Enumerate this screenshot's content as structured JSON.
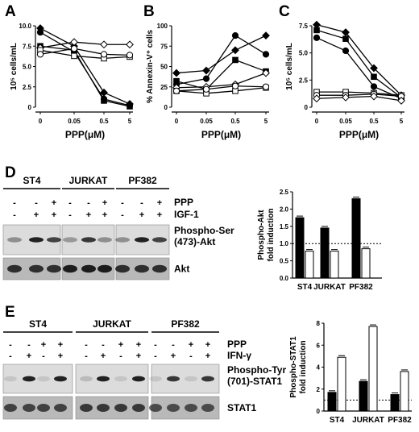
{
  "panels": {
    "A": "A",
    "B": "B",
    "C": "C",
    "D": "D",
    "E": "E"
  },
  "chart_data": [
    {
      "panel": "A",
      "type": "line",
      "x": [
        "0",
        "0.05",
        "0.5",
        "5"
      ],
      "xlabel": "PPP(μM)",
      "ylabel": "10⁵ cells/mL",
      "yticks": [
        "0",
        "2.5",
        "5.0",
        "7.5",
        "10.0"
      ],
      "ylim": [
        0,
        10
      ],
      "series": [
        {
          "marker": "filled-diamond",
          "values": [
            9.7,
            7.5,
            1.8,
            0.4
          ]
        },
        {
          "marker": "filled-circle",
          "values": [
            9.2,
            6.8,
            1.0,
            0.2
          ]
        },
        {
          "marker": "filled-square",
          "values": [
            7.5,
            7.0,
            0.8,
            0.1
          ]
        },
        {
          "marker": "open-diamond",
          "values": [
            7.3,
            8.0,
            7.7,
            7.7
          ]
        },
        {
          "marker": "open-square",
          "values": [
            7.0,
            6.3,
            6.0,
            6.2
          ]
        },
        {
          "marker": "open-circle",
          "values": [
            6.5,
            7.2,
            6.5,
            6.4
          ]
        }
      ]
    },
    {
      "panel": "B",
      "type": "line",
      "x": [
        "0",
        "0.05",
        "0.5",
        "5"
      ],
      "xlabel": "PPP(μM)",
      "ylabel": "% Annexin-V⁺ cells",
      "yticks": [
        "0",
        "25",
        "50",
        "75",
        "100"
      ],
      "ylim": [
        0,
        100
      ],
      "series": [
        {
          "marker": "filled-diamond",
          "values": [
            42,
            45,
            70,
            88
          ]
        },
        {
          "marker": "filled-circle",
          "values": [
            28,
            35,
            88,
            65
          ]
        },
        {
          "marker": "filled-square",
          "values": [
            32,
            22,
            58,
            44
          ]
        },
        {
          "marker": "open-diamond",
          "values": [
            24,
            25,
            28,
            42
          ]
        },
        {
          "marker": "open-square",
          "values": [
            20,
            17,
            20,
            24
          ]
        },
        {
          "marker": "open-circle",
          "values": [
            20,
            22,
            26,
            25
          ]
        }
      ]
    },
    {
      "panel": "C",
      "type": "line",
      "x": [
        "0",
        "0.05",
        "0.5",
        "5"
      ],
      "xlabel": "PPP(μM)",
      "ylabel": "10⁵ cells/mL",
      "yticks": [
        "0",
        "2.5",
        "5.0",
        "7.5"
      ],
      "ylim": [
        0,
        7.5
      ],
      "series": [
        {
          "marker": "filled-diamond",
          "values": [
            7.6,
            6.9,
            3.6,
            1.1
          ]
        },
        {
          "marker": "filled-square",
          "values": [
            7.1,
            6.3,
            2.8,
            0.9
          ]
        },
        {
          "marker": "filled-circle",
          "values": [
            6.4,
            5.2,
            1.9,
            0.8
          ]
        },
        {
          "marker": "open-square",
          "values": [
            1.4,
            1.4,
            1.3,
            1.1
          ]
        },
        {
          "marker": "open-circle",
          "values": [
            1.1,
            1.1,
            1.2,
            1.0
          ]
        },
        {
          "marker": "open-diamond",
          "values": [
            0.8,
            0.9,
            1.0,
            0.6
          ]
        }
      ]
    },
    {
      "panel": "D",
      "type": "bar",
      "categories": [
        "ST4",
        "JURKAT",
        "PF382"
      ],
      "ylabel": "Phospho-Akt fold induction",
      "yticks": [
        "0.0",
        "0.5",
        "1.0",
        "1.5",
        "2.0",
        "2.5"
      ],
      "ylim": [
        0,
        2.5
      ],
      "reference_line": 1.0,
      "series": [
        {
          "fill": "black",
          "values": [
            1.75,
            1.45,
            2.3
          ]
        },
        {
          "fill": "white",
          "values": [
            0.78,
            0.78,
            0.85
          ]
        }
      ]
    },
    {
      "panel": "E",
      "type": "bar",
      "categories": [
        "ST4",
        "JURKAT",
        "PF382"
      ],
      "ylabel": "Phospho-STAT1 fold induction",
      "yticks": [
        "0",
        "2",
        "4",
        "6",
        "8"
      ],
      "ylim": [
        0,
        8
      ],
      "reference_line": 1.0,
      "series": [
        {
          "fill": "black",
          "values": [
            1.7,
            2.7,
            1.5
          ]
        },
        {
          "fill": "white",
          "values": [
            4.9,
            7.7,
            3.6
          ]
        }
      ]
    }
  ],
  "blotD": {
    "groups": [
      "ST4",
      "JURKAT",
      "PF382"
    ],
    "conditions": [
      {
        "label": "PPP",
        "signs": [
          "-",
          "-",
          "+",
          "-",
          "-",
          "+",
          "-",
          "-",
          "+"
        ]
      },
      {
        "label": "IGF-1",
        "signs": [
          "-",
          "+",
          "+",
          "-",
          "+",
          "+",
          "-",
          "+",
          "+"
        ]
      }
    ],
    "band1_line1": "Phospho-Ser",
    "band1_line2": "(473)-Akt",
    "band2": "Akt"
  },
  "blotE": {
    "groups": [
      "ST4",
      "JURKAT",
      "PF382"
    ],
    "conditions": [
      {
        "label": "PPP",
        "signs": [
          "-",
          "-",
          "+",
          "+",
          "-",
          "-",
          "+",
          "+",
          "-",
          "-",
          "+",
          "+"
        ]
      },
      {
        "label": "IFN-γ",
        "signs": [
          "-",
          "+",
          "-",
          "+",
          "-",
          "+",
          "-",
          "+",
          "-",
          "+",
          "-",
          "+"
        ]
      }
    ],
    "band1_line1": "Phospho-Tyr",
    "band1_line2": "(701)-STAT1",
    "band2": "STAT1"
  }
}
